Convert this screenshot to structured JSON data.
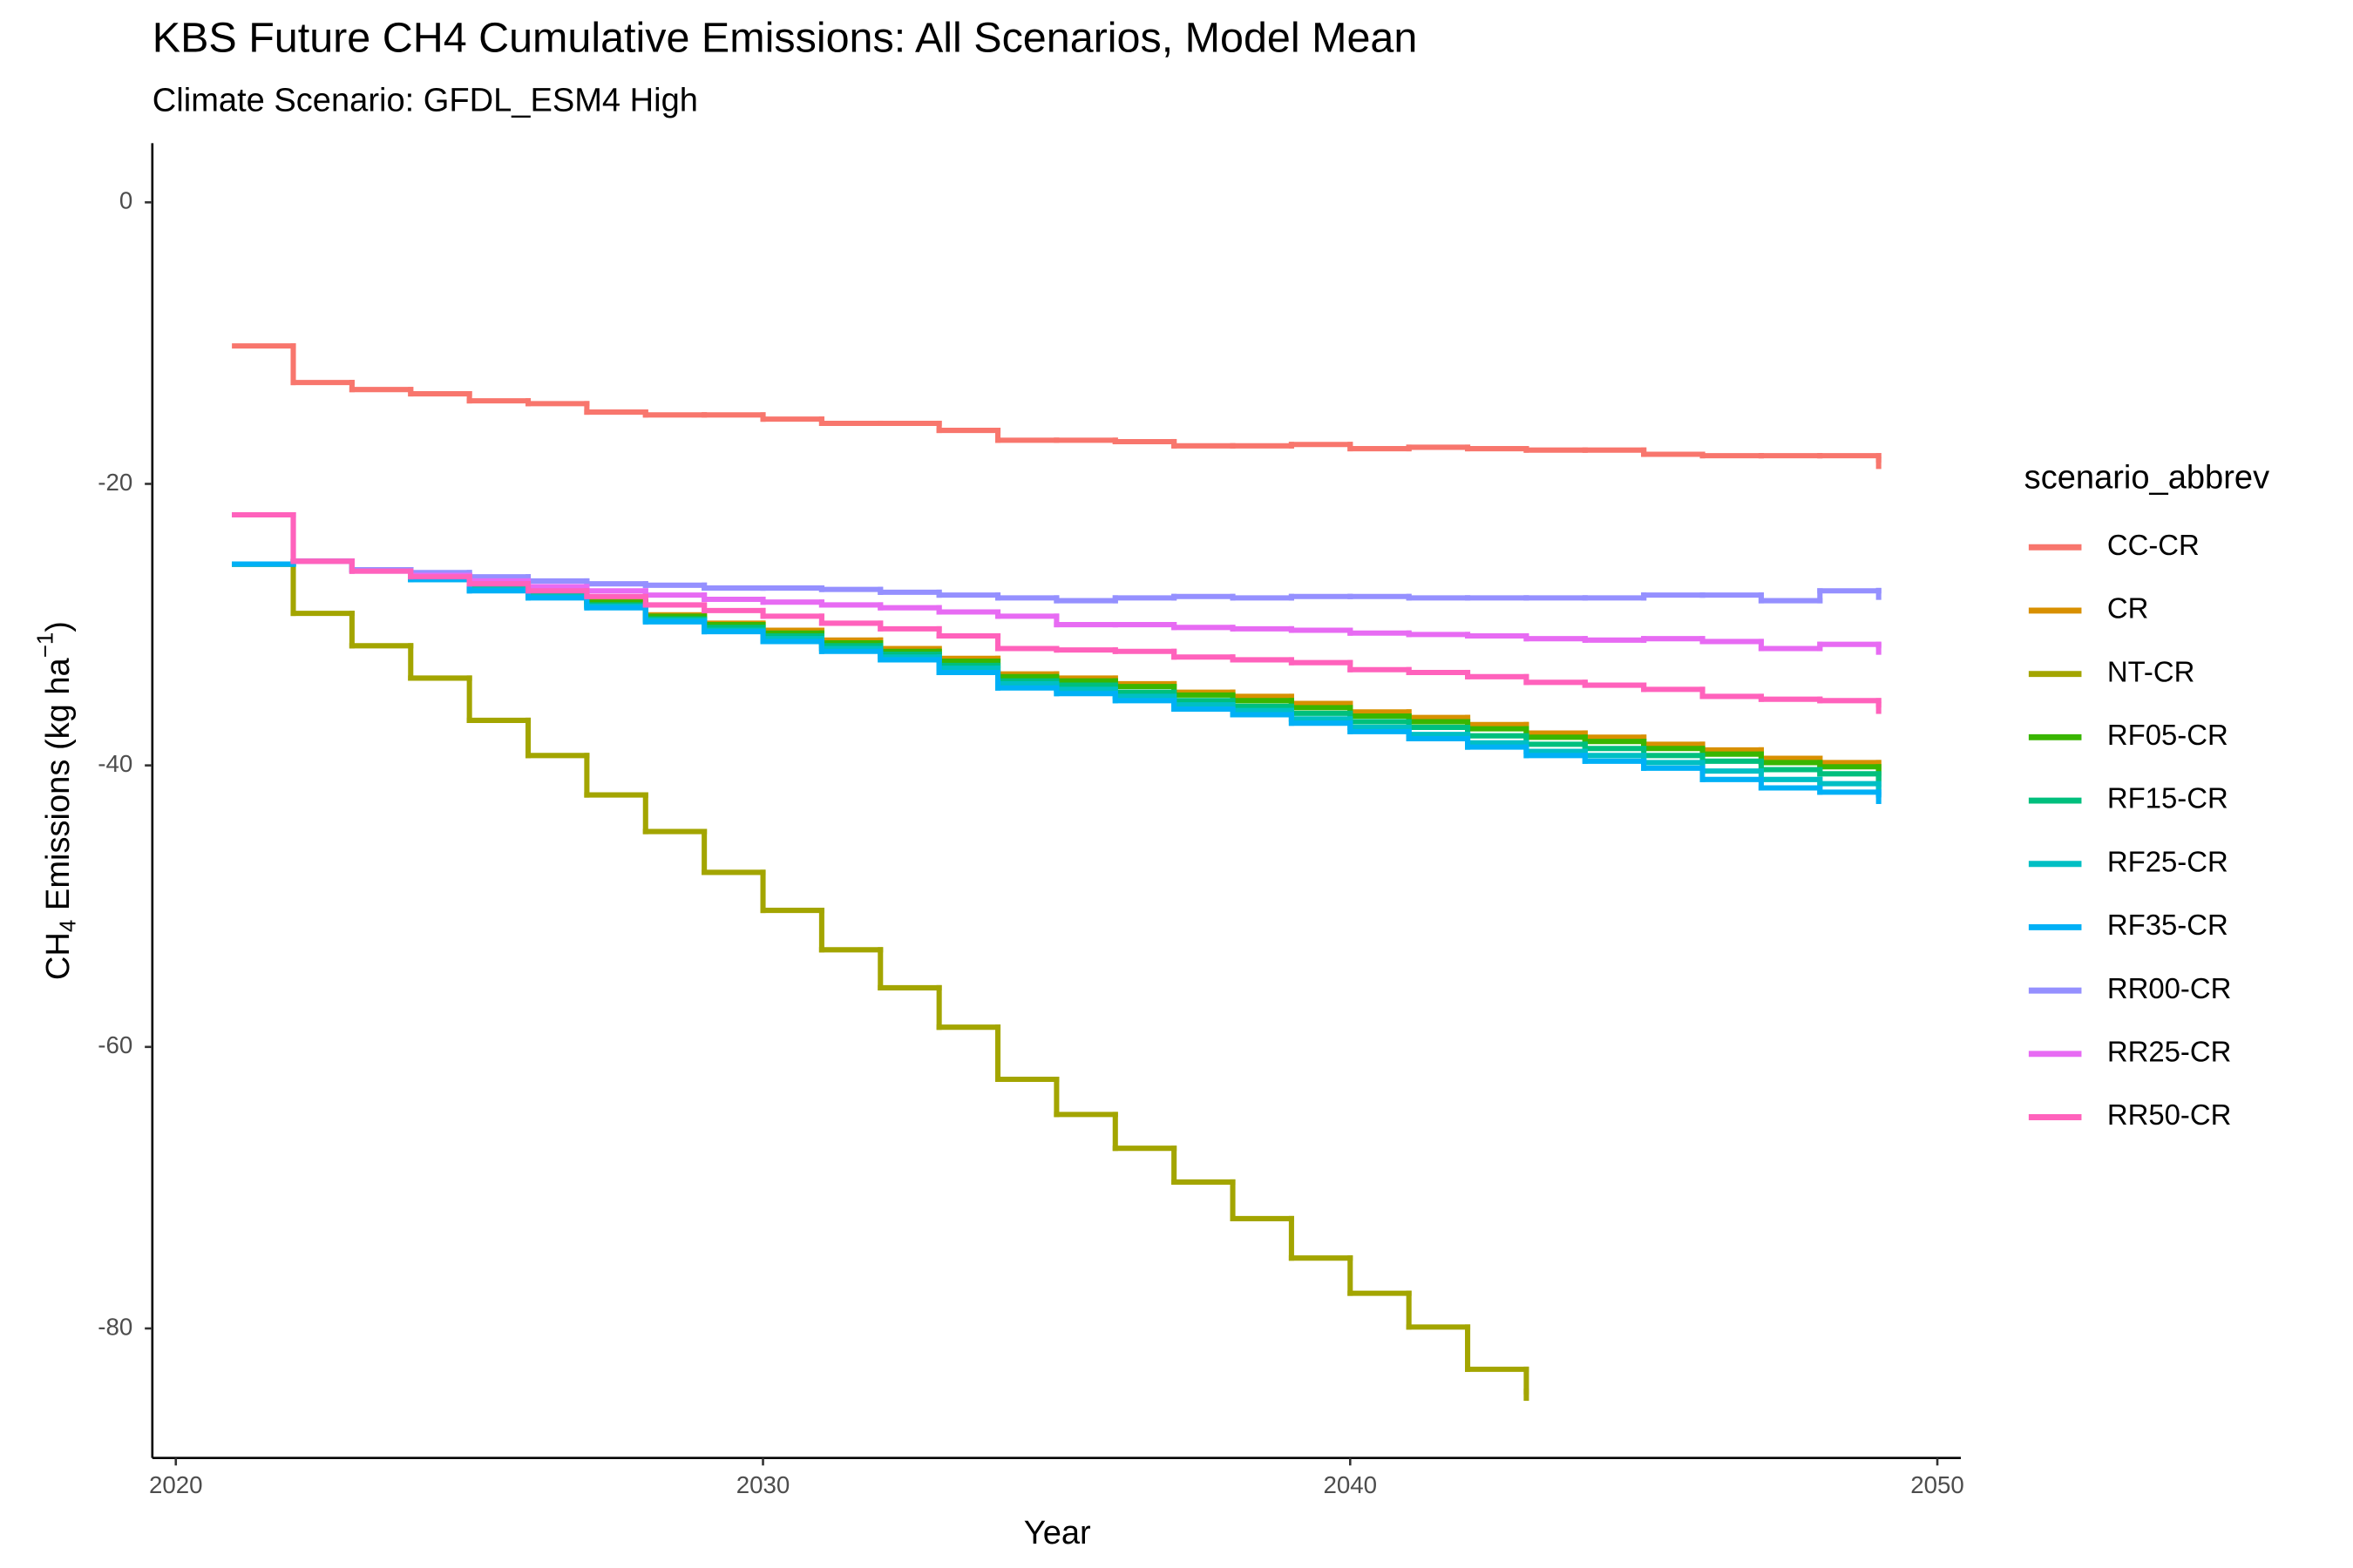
{
  "chart_data": {
    "type": "step",
    "title": "KBS  Future CH4 Cumulative Emissions: All Scenarios, Model Mean",
    "subtitle": "Climate Scenario: GFDL_ESM4 High",
    "xlabel": "Year",
    "ylabel": {
      "main": "CH",
      "sub": "4",
      "rest": " Emissions (kg ha",
      "sup": "−1",
      "close": ")"
    },
    "legend_title": "scenario_abbrev",
    "legend": "right",
    "grid": false,
    "xlim": [
      2019.6,
      2050.4
    ],
    "ylim": [
      -89.2,
      4.2
    ],
    "xticks": [
      2020,
      2030,
      2040,
      2050
    ],
    "yticks": [
      0,
      -20,
      -40,
      -60,
      -80
    ],
    "x": [
      2021,
      2022,
      2023,
      2024,
      2025,
      2026,
      2027,
      2028,
      2029,
      2030,
      2031,
      2032,
      2033,
      2034,
      2035,
      2036,
      2037,
      2038,
      2039,
      2040,
      2041,
      2042,
      2043,
      2044,
      2045,
      2046,
      2047,
      2048,
      2049
    ],
    "series": [
      {
        "name": "CC-CR",
        "color": "#F8766D",
        "values": [
          -10.2,
          -12.8,
          -13.3,
          -13.6,
          -14.1,
          -14.3,
          -14.9,
          -15.1,
          -15.1,
          -15.4,
          -15.7,
          -15.7,
          -16.2,
          -16.9,
          -16.9,
          -17.0,
          -17.3,
          -17.3,
          -17.2,
          -17.5,
          -17.4,
          -17.5,
          -17.6,
          -17.6,
          -17.9,
          -18.0,
          -18.0,
          -18.0,
          -18.3
        ]
      },
      {
        "name": "CR",
        "color": "#D89000",
        "values": [
          -25.7,
          -25.5,
          -26.1,
          -26.5,
          -27.2,
          -27.7,
          -28.3,
          -29.3,
          -29.9,
          -30.4,
          -31.1,
          -31.7,
          -32.4,
          -33.5,
          -33.8,
          -34.2,
          -34.8,
          -35.1,
          -35.6,
          -36.2,
          -36.6,
          -37.1,
          -37.7,
          -38.0,
          -38.5,
          -38.9,
          -39.5,
          -39.8,
          -40.1
        ]
      },
      {
        "name": "NT-CR",
        "color": "#A3A500",
        "values": [
          -25.7,
          -29.2,
          -31.5,
          -33.8,
          -36.8,
          -39.3,
          -42.1,
          -44.7,
          -47.6,
          -50.3,
          -53.1,
          -55.8,
          -58.6,
          -62.3,
          -64.8,
          -67.2,
          -69.6,
          -72.2,
          -75.0,
          -77.5,
          -79.9,
          -82.9,
          -84.5,
          null,
          null,
          null,
          null,
          null,
          null
        ]
      },
      {
        "name": "RF05-CR",
        "color": "#39B600",
        "values": [
          -25.7,
          -25.5,
          -26.1,
          -26.6,
          -27.3,
          -27.8,
          -28.4,
          -29.4,
          -30.0,
          -30.6,
          -31.3,
          -31.9,
          -32.6,
          -33.7,
          -34.0,
          -34.4,
          -35.0,
          -35.4,
          -35.9,
          -36.5,
          -36.9,
          -37.4,
          -38.0,
          -38.3,
          -38.8,
          -39.2,
          -39.8,
          -40.1,
          -40.5
        ]
      },
      {
        "name": "RF15-CR",
        "color": "#00BF7D",
        "values": [
          -25.7,
          -25.5,
          -26.1,
          -26.7,
          -27.4,
          -27.9,
          -28.6,
          -29.6,
          -30.2,
          -30.8,
          -31.5,
          -32.1,
          -32.9,
          -34.0,
          -34.3,
          -34.8,
          -35.4,
          -35.8,
          -36.3,
          -36.9,
          -37.3,
          -37.9,
          -38.5,
          -38.8,
          -39.3,
          -39.7,
          -40.3,
          -40.6,
          -40.9
        ]
      },
      {
        "name": "RF25-CR",
        "color": "#00BFC4",
        "values": [
          -25.7,
          -25.5,
          -26.1,
          -26.8,
          -27.5,
          -28.0,
          -28.7,
          -29.7,
          -30.4,
          -31.0,
          -31.7,
          -32.3,
          -33.1,
          -34.2,
          -34.6,
          -35.1,
          -35.7,
          -36.1,
          -36.7,
          -37.3,
          -37.8,
          -38.4,
          -39.0,
          -39.3,
          -39.8,
          -40.4,
          -41.0,
          -41.3,
          -41.6
        ]
      },
      {
        "name": "RF35-CR",
        "color": "#00B0F6",
        "values": [
          -25.7,
          -25.5,
          -26.1,
          -26.8,
          -27.6,
          -28.1,
          -28.8,
          -29.8,
          -30.5,
          -31.2,
          -31.9,
          -32.5,
          -33.4,
          -34.5,
          -34.9,
          -35.4,
          -36.0,
          -36.4,
          -37.0,
          -37.6,
          -38.1,
          -38.7,
          -39.3,
          -39.7,
          -40.2,
          -41.0,
          -41.6,
          -41.9,
          -42.1
        ]
      },
      {
        "name": "RR00-CR",
        "color": "#9590FF",
        "values": [
          -22.2,
          -25.5,
          -26.1,
          -26.3,
          -26.6,
          -26.9,
          -27.1,
          -27.2,
          -27.4,
          -27.4,
          -27.5,
          -27.7,
          -27.9,
          -28.1,
          -28.3,
          -28.1,
          -28.0,
          -28.1,
          -28.0,
          -28.0,
          -28.1,
          -28.1,
          -28.1,
          -28.1,
          -27.9,
          -27.9,
          -28.3,
          -27.6,
          -27.6
        ]
      },
      {
        "name": "RR25-CR",
        "color": "#E76BF3",
        "values": [
          -22.2,
          -25.5,
          -26.2,
          -26.5,
          -26.9,
          -27.3,
          -27.6,
          -27.9,
          -28.2,
          -28.4,
          -28.6,
          -28.8,
          -29.1,
          -29.4,
          -30.0,
          -30.0,
          -30.2,
          -30.3,
          -30.4,
          -30.6,
          -30.7,
          -30.8,
          -31.0,
          -31.1,
          -31.0,
          -31.2,
          -31.7,
          -31.4,
          -31.5
        ]
      },
      {
        "name": "RR50-CR",
        "color": "#FF62BC",
        "values": [
          -22.2,
          -25.5,
          -26.2,
          -26.6,
          -27.1,
          -27.6,
          -28.0,
          -28.6,
          -29.0,
          -29.4,
          -29.9,
          -30.3,
          -30.8,
          -31.7,
          -31.8,
          -31.9,
          -32.3,
          -32.5,
          -32.7,
          -33.2,
          -33.4,
          -33.7,
          -34.1,
          -34.3,
          -34.6,
          -35.1,
          -35.3,
          -35.4,
          -35.7
        ]
      }
    ]
  }
}
